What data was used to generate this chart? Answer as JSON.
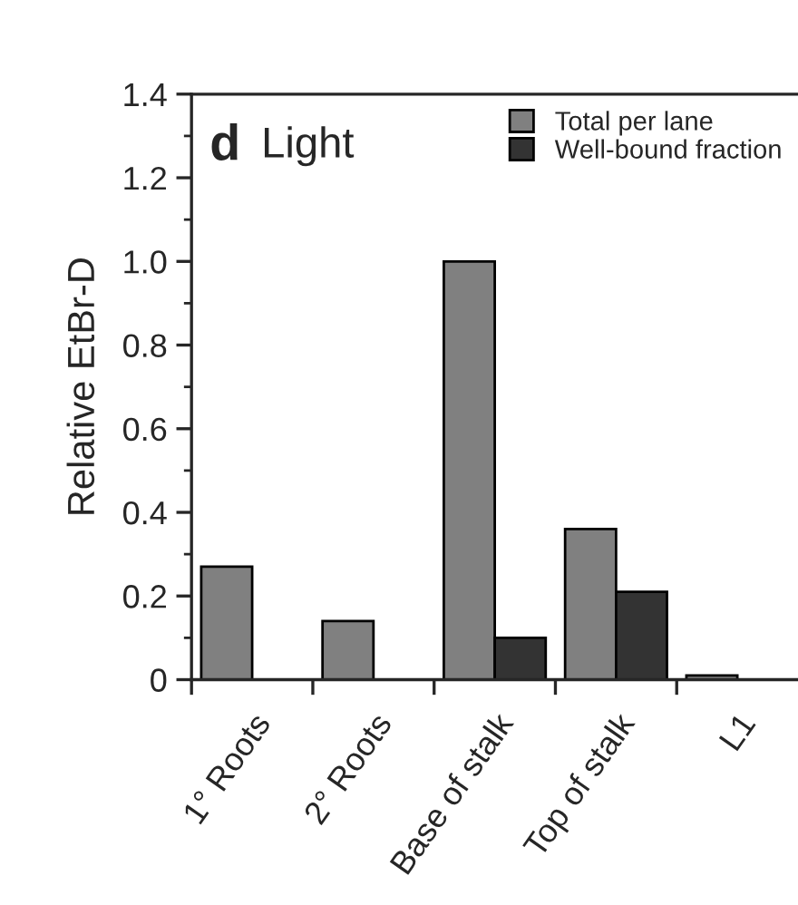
{
  "chart_data": {
    "type": "bar",
    "title": "d Light",
    "ylabel": "Relative EtBr-D",
    "categories": [
      "1° Roots",
      "2° Roots",
      "Base of stalk",
      "Top of stalk",
      "L1"
    ],
    "series": [
      {
        "name": "Total per lane",
        "color": "#808080",
        "values": [
          0.27,
          0.14,
          1.0,
          0.36,
          0.01
        ]
      },
      {
        "name": "Well-bound fraction",
        "color": "#333333",
        "values": [
          null,
          null,
          0.1,
          0.21,
          null
        ]
      }
    ],
    "ylim": [
      0,
      1.4
    ],
    "yticks": [
      0,
      0.2,
      0.4,
      0.6,
      0.8,
      {
        "value": 1.0,
        "label": "1.0"
      },
      1.2,
      1.4
    ],
    "grid": false,
    "legend": "top right"
  }
}
